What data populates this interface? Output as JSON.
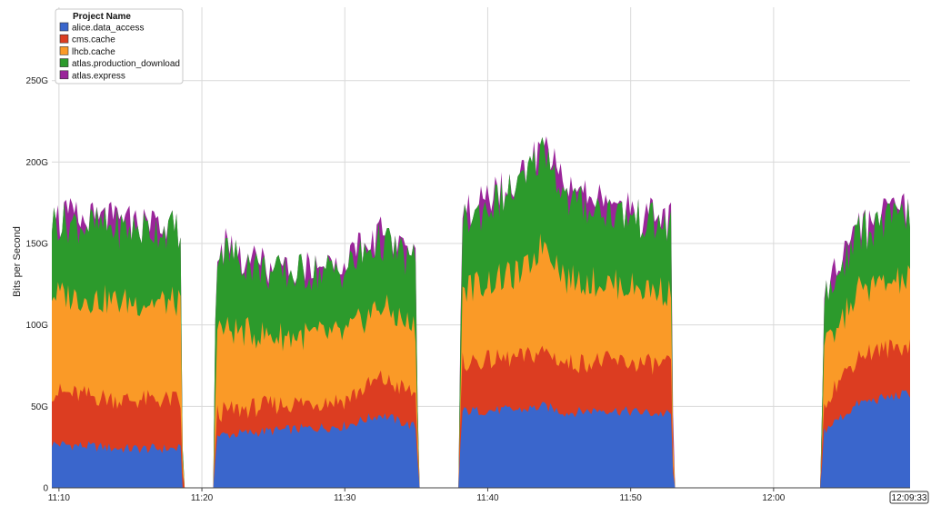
{
  "chart_data": {
    "type": "area",
    "stacked": true,
    "title": "",
    "xlabel": "",
    "ylabel": "Bits per Second",
    "ylim": [
      0,
      295
    ],
    "y_unit": "G",
    "yticks": [
      {
        "value": 0,
        "label": "0"
      },
      {
        "value": 50,
        "label": "50G"
      },
      {
        "value": 100,
        "label": "100G"
      },
      {
        "value": 150,
        "label": "150G"
      },
      {
        "value": 200,
        "label": "200G"
      },
      {
        "value": 250,
        "label": "250G"
      }
    ],
    "xlim": [
      "11:09:30",
      "12:09:33"
    ],
    "xticks": [
      "11:10",
      "11:20",
      "11:30",
      "11:40",
      "11:50",
      "12:00"
    ],
    "x_end_label": "12:09:33",
    "grid": true,
    "legend": {
      "title": "Project Name",
      "placement": "top-left"
    },
    "x": [
      "11:09:30",
      "11:14:30",
      "11:18:30",
      "11:18:40",
      "11:20:50",
      "11:21:00",
      "11:25:00",
      "11:30:00",
      "11:32:30",
      "11:35:00",
      "11:35:10",
      "11:38:00",
      "11:38:10",
      "11:42:30",
      "11:44:00",
      "11:45:30",
      "11:48:00",
      "11:52:50",
      "11:53:00",
      "12:03:20",
      "12:03:30",
      "12:06:00",
      "12:09:33"
    ],
    "series": [
      {
        "name": "alice.data_access",
        "color": "#3A66CC",
        "values": [
          27,
          24,
          24,
          0,
          0,
          32,
          35,
          38,
          45,
          37,
          0,
          0,
          47,
          48,
          50,
          46,
          48,
          45,
          0,
          0,
          35,
          52,
          58
        ]
      },
      {
        "name": "cms.cache",
        "color": "#DC3D21",
        "values": [
          32,
          30,
          30,
          0,
          0,
          14,
          16,
          16,
          22,
          20,
          0,
          0,
          30,
          32,
          34,
          30,
          30,
          30,
          0,
          0,
          18,
          30,
          30
        ]
      },
      {
        "name": "lhcb.cache",
        "color": "#FA9A27",
        "values": [
          60,
          60,
          60,
          0,
          0,
          52,
          42,
          40,
          45,
          40,
          0,
          0,
          45,
          52,
          68,
          52,
          48,
          45,
          0,
          0,
          30,
          40,
          40
        ]
      },
      {
        "name": "atlas.production_download",
        "color": "#2C9A2C",
        "values": [
          45,
          45,
          45,
          0,
          0,
          50,
          38,
          40,
          40,
          40,
          0,
          0,
          40,
          55,
          58,
          48,
          45,
          40,
          0,
          0,
          30,
          35,
          40
        ]
      },
      {
        "name": "atlas.express",
        "color": "#9A259A",
        "values": [
          0,
          0,
          0,
          0,
          0,
          0,
          0,
          0,
          0,
          0,
          0,
          0,
          0,
          0,
          0,
          0,
          0,
          0,
          0,
          0,
          0,
          0,
          0
        ]
      }
    ]
  }
}
